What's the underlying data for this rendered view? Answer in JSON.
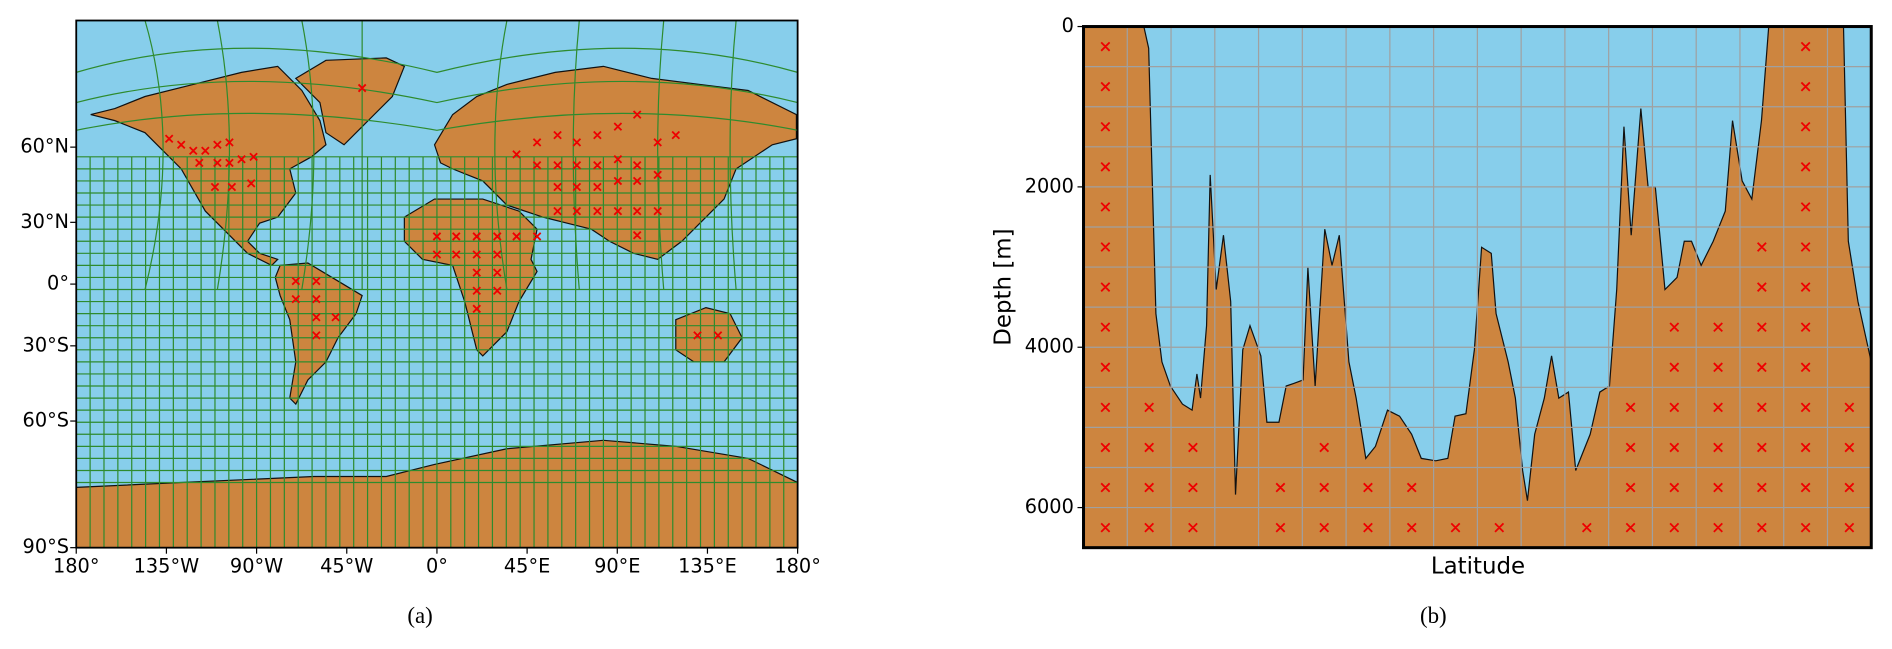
{
  "chart_data": [
    {
      "type": "map",
      "caption": "(a)",
      "xlim": [
        -180,
        180
      ],
      "ylim": [
        -90,
        90
      ],
      "xticks": [
        {
          "value": -180,
          "label": "180°"
        },
        {
          "value": -135,
          "label": "135°W"
        },
        {
          "value": -90,
          "label": "90°W"
        },
        {
          "value": -45,
          "label": "45°W"
        },
        {
          "value": 0,
          "label": "0°"
        },
        {
          "value": 45,
          "label": "45°E"
        },
        {
          "value": 90,
          "label": "90°E"
        },
        {
          "value": 135,
          "label": "135°E"
        },
        {
          "value": 180,
          "label": "180°"
        }
      ],
      "yticks": [
        {
          "value": 60,
          "label": "60°N"
        },
        {
          "value": 30,
          "label": "30°N"
        },
        {
          "value": 0,
          "label": "0°"
        },
        {
          "value": -30,
          "label": "30°S"
        },
        {
          "value": -60,
          "label": "60°S"
        },
        {
          "value": -90,
          "label": "90°S"
        }
      ]
    },
    {
      "type": "area",
      "caption": "(b)",
      "xlabel": "Latitude",
      "ylabel": "Depth [m]",
      "ylim": [
        6500,
        0
      ],
      "yticks": [
        0,
        2000,
        4000,
        6000
      ],
      "grid": true
    }
  ]
}
